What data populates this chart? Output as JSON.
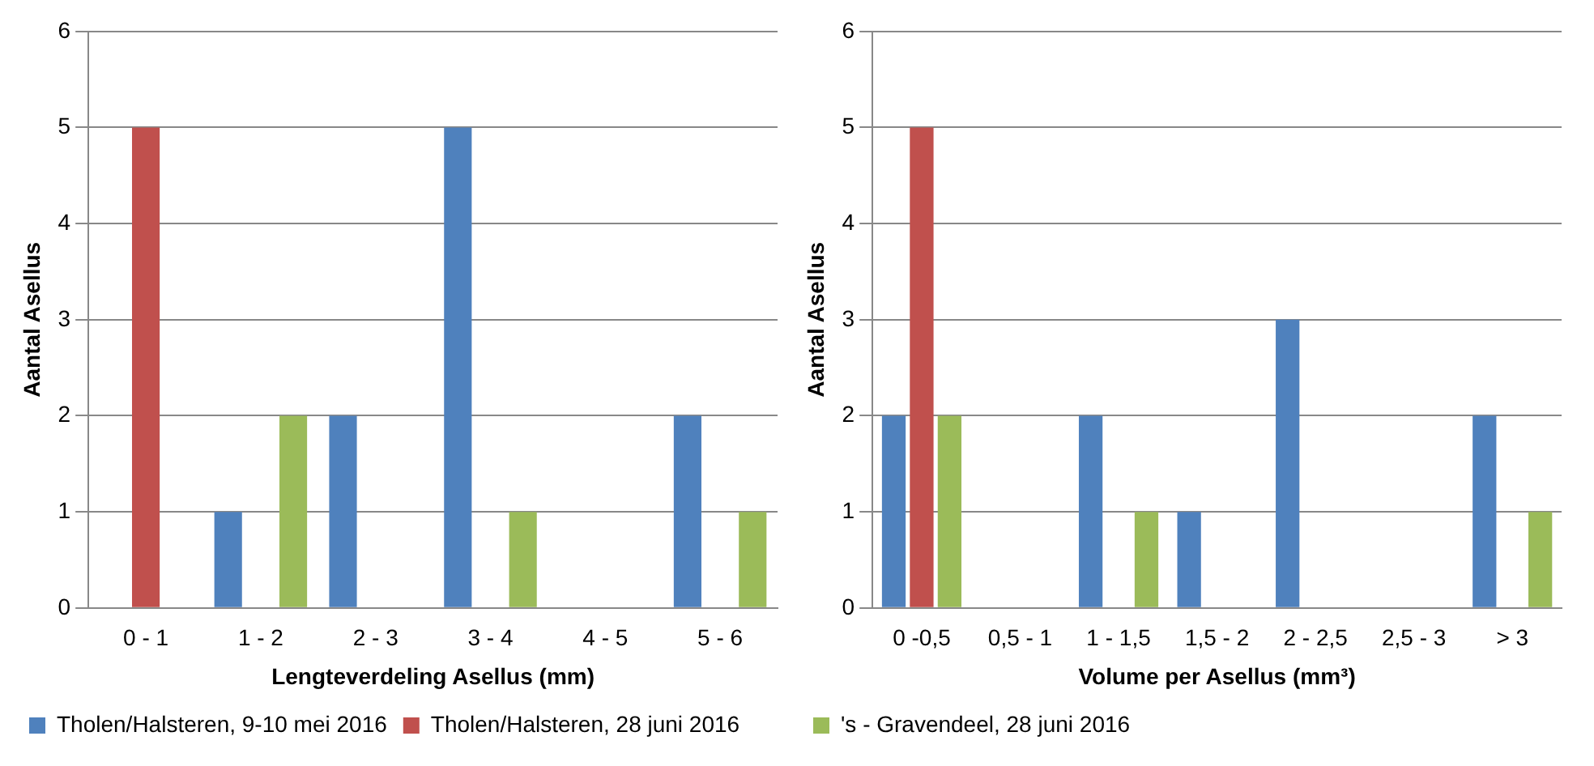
{
  "chart_data": [
    {
      "type": "bar",
      "xlabel": "Lengteverdeling Asellus (mm)",
      "ylabel": "Aantal Asellus",
      "categories": [
        "0 - 1",
        "1 - 2",
        "2 - 3",
        "3 - 4",
        "4 - 5",
        "5 - 6"
      ],
      "series": [
        {
          "name": "Tholen/Halsteren, 9-10 mei 2016",
          "color": "#4f81bd",
          "values": [
            0,
            1,
            2,
            5,
            0,
            2
          ]
        },
        {
          "name": "Tholen/Halsteren, 28 juni 2016",
          "color": "#c0504d",
          "values": [
            5,
            0,
            0,
            0,
            0,
            0
          ]
        },
        {
          "color": "#9bbb59",
          "values": [
            0,
            2,
            0,
            1,
            0,
            1
          ]
        }
      ],
      "ylim": [
        0,
        6
      ],
      "yticks": [
        0,
        1,
        2,
        3,
        4,
        5,
        6
      ],
      "grid": "y",
      "legend": "bottom"
    },
    {
      "type": "bar",
      "xlabel": "Volume per Asellus (mm³)",
      "ylabel": "Aantal Asellus",
      "categories": [
        "0 -0,5",
        "0,5 - 1",
        "1 - 1,5",
        "1,5 - 2",
        "2 - 2,5",
        "2,5 - 3",
        "> 3"
      ],
      "series": [
        {
          "color": "#4f81bd",
          "values": [
            2,
            0,
            2,
            1,
            3,
            0,
            2
          ]
        },
        {
          "color": "#c0504d",
          "values": [
            5,
            0,
            0,
            0,
            0,
            0,
            0
          ]
        },
        {
          "name": "'s - Gravendeel, 28 juni 2016",
          "color": "#9bbb59",
          "values": [
            2,
            0,
            1,
            0,
            0,
            0,
            1
          ]
        }
      ],
      "ylim": [
        0,
        6
      ],
      "yticks": [
        0,
        1,
        2,
        3,
        4,
        5,
        6
      ],
      "grid": "y",
      "legend": "bottom"
    }
  ]
}
